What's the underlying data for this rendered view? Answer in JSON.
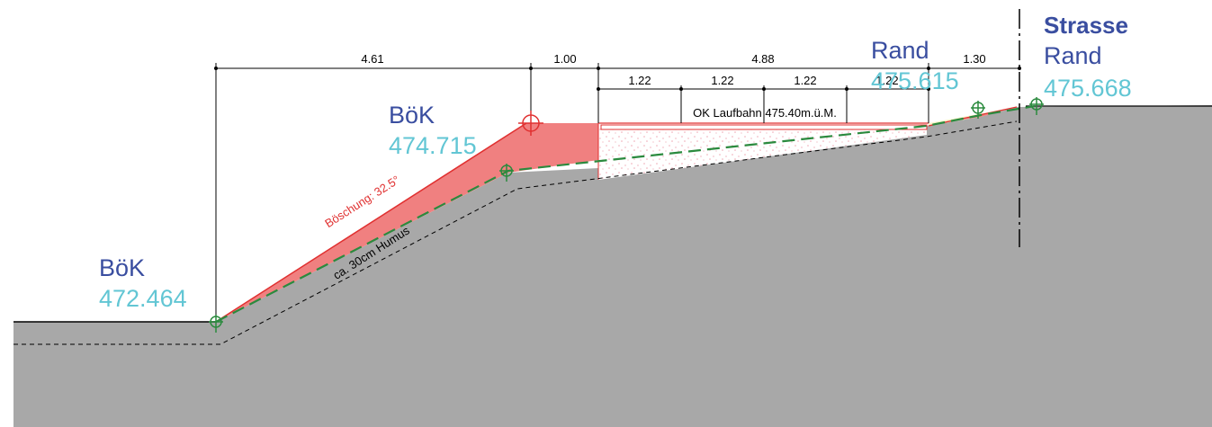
{
  "colors": {
    "ground": "#a8a8a8",
    "fill_red": "#f08080",
    "line_red": "#e03030",
    "line_green": "#2b8a3e",
    "label_blue": "#3a4ea0",
    "label_cyan": "#62c6d4",
    "fill_yellow": "#f7f3c8"
  },
  "labels": {
    "bok_left": {
      "name": "BöK",
      "value": "472.464"
    },
    "bok_mid": {
      "name": "BöK",
      "value": "474.715"
    },
    "rand_right": {
      "name": "Rand",
      "value": "475.615"
    },
    "strasse": {
      "title": "Strasse",
      "name": "Rand",
      "value": "475.668"
    }
  },
  "slope_text": "Böschung: 32.5°",
  "humus_text": "ca. 30cm Humus",
  "track_text": "OK Laufbahn 475.40m.ü.M.",
  "dimensions": {
    "top": [
      "4.61",
      "1.00",
      "4.88",
      "1.30"
    ],
    "sub": [
      "1.22",
      "1.22",
      "1.22",
      "1.22"
    ]
  },
  "icons": [
    "survey-point-icon",
    "reference-target-icon",
    "axis-line"
  ]
}
